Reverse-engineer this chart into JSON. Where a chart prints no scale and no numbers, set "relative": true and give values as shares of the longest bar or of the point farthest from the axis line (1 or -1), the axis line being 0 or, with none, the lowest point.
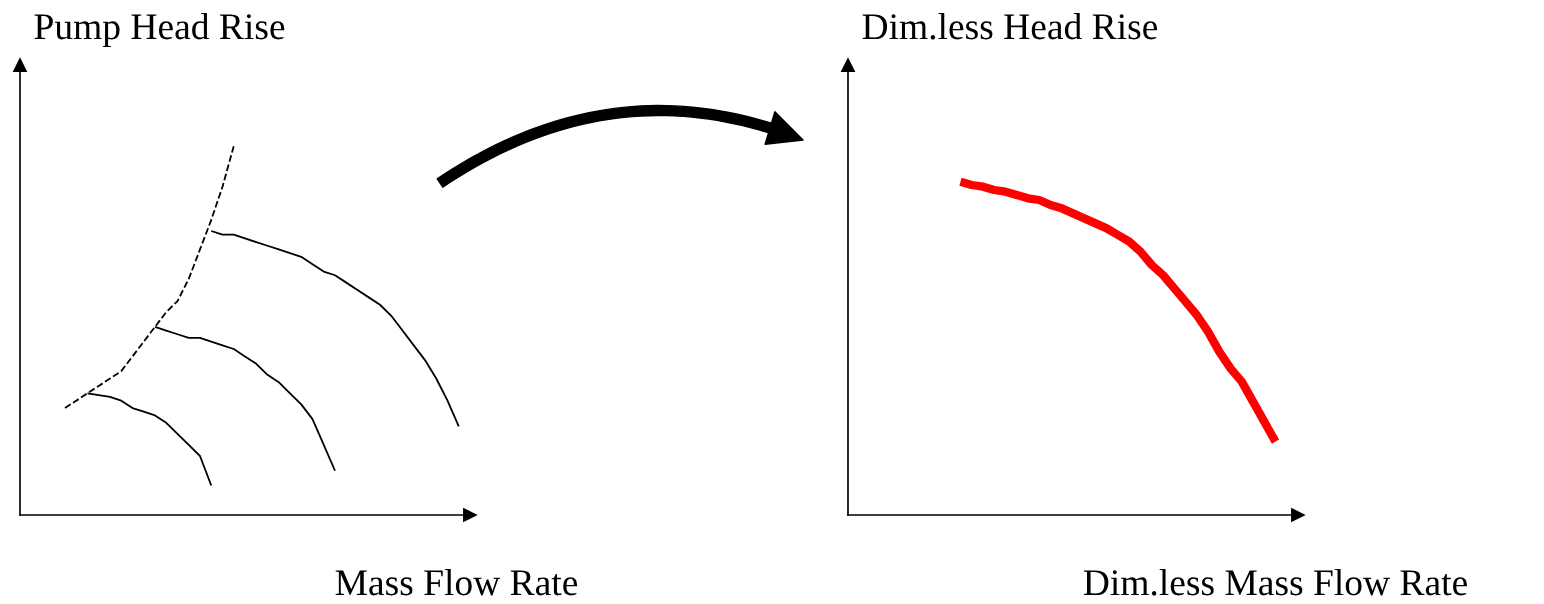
{
  "chart_data": [
    {
      "type": "line",
      "relative": true,
      "ylabel": "Pump Head Rise",
      "xlabel": "Mass Flow Rate",
      "categories": [
        null,
        null,
        null,
        null,
        null,
        null,
        null,
        null,
        null,
        null,
        null,
        null,
        null,
        null,
        null,
        null,
        null,
        null,
        null,
        null,
        null,
        null,
        null,
        null,
        null,
        null,
        null,
        null,
        null,
        null,
        null,
        null,
        null,
        null,
        null,
        null,
        null,
        null,
        null,
        null,
        null
      ],
      "series": [
        {
          "color": "#000000",
          "line_style": "dashed",
          "values": [
            null,
            null,
            null,
            null,
            0.29,
            0.31,
            0.33,
            0.35,
            0.37,
            0.39,
            0.43,
            0.47,
            0.51,
            0.55,
            0.58,
            0.64,
            0.72,
            0.8,
            0.89,
            1.0,
            null,
            null,
            null,
            null,
            null,
            null,
            null,
            null,
            null,
            null,
            null,
            null,
            null,
            null,
            null,
            null,
            null,
            null,
            null,
            null,
            null
          ]
        },
        {
          "color": "#000000",
          "line_style": "solid",
          "values": [
            null,
            null,
            null,
            null,
            null,
            null,
            0.33,
            0.325,
            0.32,
            0.31,
            0.29,
            0.28,
            0.27,
            0.25,
            0.22,
            0.19,
            0.16,
            0.08,
            null,
            null,
            null,
            null,
            null,
            null,
            null,
            null,
            null,
            null,
            null,
            null,
            null,
            null,
            null,
            null,
            null,
            null,
            null,
            null,
            null,
            null,
            null
          ]
        },
        {
          "color": "#000000",
          "line_style": "solid",
          "values": [
            null,
            null,
            null,
            null,
            null,
            null,
            null,
            null,
            null,
            null,
            null,
            null,
            0.51,
            0.5,
            0.49,
            0.48,
            0.48,
            0.47,
            0.46,
            0.45,
            0.43,
            0.41,
            0.38,
            0.36,
            0.33,
            0.3,
            0.26,
            0.19,
            0.12,
            null,
            null,
            null,
            null,
            null,
            null,
            null,
            null,
            null,
            null,
            null,
            null
          ]
        },
        {
          "color": "#000000",
          "line_style": "solid",
          "values": [
            null,
            null,
            null,
            null,
            null,
            null,
            null,
            null,
            null,
            null,
            null,
            null,
            null,
            null,
            null,
            null,
            null,
            0.77,
            0.76,
            0.76,
            0.75,
            0.74,
            0.73,
            0.72,
            0.71,
            0.7,
            0.68,
            0.66,
            0.65,
            0.63,
            0.61,
            0.59,
            0.57,
            0.54,
            0.5,
            0.46,
            0.42,
            0.37,
            0.31,
            0.24,
            null
          ]
        }
      ]
    },
    {
      "type": "line",
      "relative": true,
      "ylabel": "Dim.less Head Rise",
      "xlabel": "Dim.less Mass Flow Rate",
      "categories": [
        null,
        null,
        null,
        null,
        null,
        null,
        null,
        null,
        null,
        null,
        null,
        null,
        null,
        null,
        null,
        null,
        null,
        null,
        null,
        null,
        null,
        null,
        null,
        null,
        null,
        null,
        null,
        null,
        null,
        null,
        null,
        null,
        null,
        null,
        null,
        null,
        null,
        null,
        null,
        null,
        null
      ],
      "series": [
        {
          "color": "#ff0000",
          "line_style": "solid",
          "values": [
            null,
            null,
            null,
            null,
            null,
            null,
            null,
            null,
            null,
            null,
            1.0,
            0.99,
            0.985,
            0.975,
            0.97,
            0.96,
            0.95,
            0.945,
            0.93,
            0.92,
            0.905,
            0.89,
            0.875,
            0.86,
            0.84,
            0.82,
            0.79,
            0.75,
            0.72,
            0.68,
            0.64,
            0.6,
            0.55,
            0.49,
            0.44,
            0.4,
            0.34,
            0.28,
            0.22,
            null,
            null
          ]
        }
      ]
    }
  ]
}
